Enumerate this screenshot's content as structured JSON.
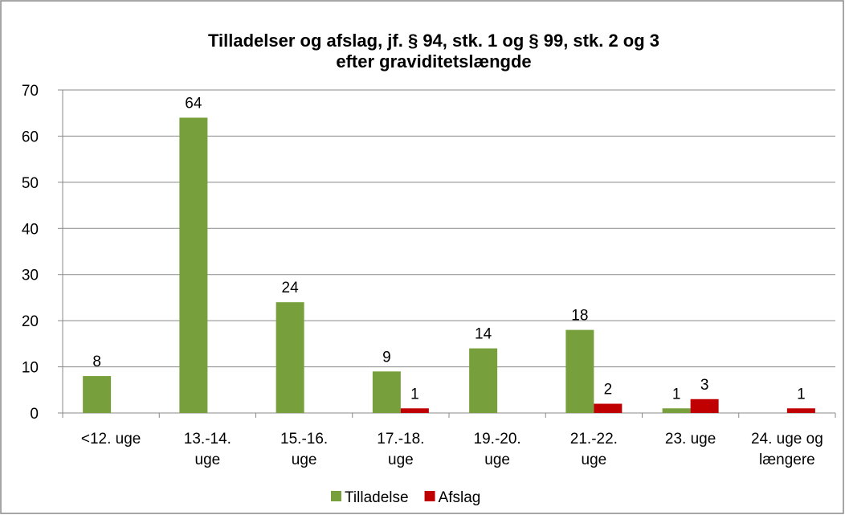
{
  "chart_data": {
    "type": "bar",
    "title": "Tilladelser og afslag, jf. § 94, stk. 1 og § 99, stk. 2 og 3\nefter graviditetslængde",
    "categories": [
      "<12. uge",
      "13.-14.\nuge",
      "15.-16.\nuge",
      "17.-18.\nuge",
      "19.-20.\nuge",
      "21.-22.\nuge",
      "23. uge",
      "24. uge og\nlængere"
    ],
    "series": [
      {
        "name": "Tilladelse",
        "color": "#77a03c",
        "values": [
          8,
          64,
          24,
          9,
          14,
          18,
          1,
          null
        ]
      },
      {
        "name": "Afslag",
        "color": "#c00000",
        "values": [
          null,
          null,
          null,
          1,
          null,
          2,
          3,
          1
        ]
      }
    ],
    "ylim": [
      0,
      70
    ],
    "yticks": [
      0,
      10,
      20,
      30,
      40,
      50,
      60,
      70
    ],
    "grid": true,
    "legend": "bottom"
  }
}
